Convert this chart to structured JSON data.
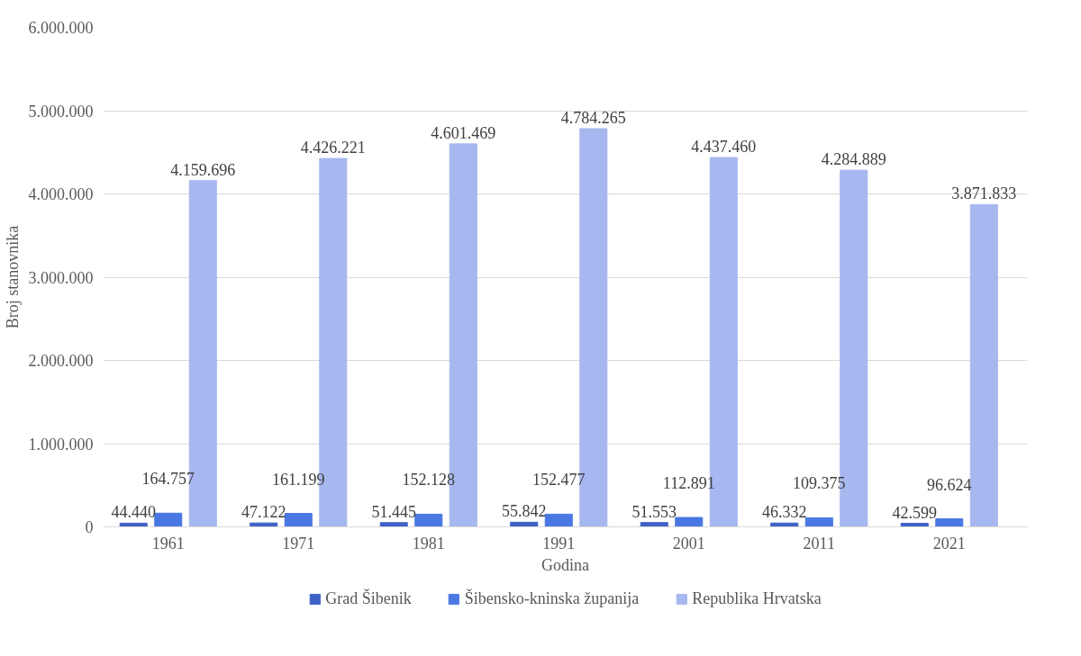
{
  "chart_data": {
    "type": "bar",
    "xlabel": "Godina",
    "ylabel": "Broj stanovnika",
    "categories": [
      "1961",
      "1971",
      "1981",
      "1991",
      "2001",
      "2011",
      "2021"
    ],
    "series": [
      {
        "name": "Grad Šibenik",
        "color": "#3f62c6",
        "values": [
          44440,
          47122,
          51445,
          55842,
          51553,
          46332,
          42599
        ],
        "value_labels": [
          "44.440",
          "47.122",
          "51.445",
          "55.842",
          "51.553",
          "46.332",
          "42.599"
        ]
      },
      {
        "name": "Šibensko-kninska županija",
        "color": "#4a78e2",
        "values": [
          164757,
          161199,
          152128,
          152477,
          112891,
          109375,
          96624
        ],
        "value_labels": [
          "164.757",
          "161.199",
          "152.128",
          "152.477",
          "112.891",
          "109.375",
          "96.624"
        ]
      },
      {
        "name": "Republika Hrvatska",
        "color": "#a7b7ef",
        "values": [
          4159696,
          4426221,
          4601469,
          4784265,
          4437460,
          4284889,
          3871833
        ],
        "value_labels": [
          "4.159.696",
          "4.426.221",
          "4.601.469",
          "4.784.265",
          "4.437.460",
          "4.284.889",
          "3.871.833"
        ]
      }
    ],
    "ylim": [
      0,
      6000000
    ],
    "yticks": [
      {
        "value": 0,
        "label": "0"
      },
      {
        "value": 1000000,
        "label": "1.000.000"
      },
      {
        "value": 2000000,
        "label": "2.000.000"
      },
      {
        "value": 3000000,
        "label": "3.000.000"
      },
      {
        "value": 4000000,
        "label": "4.000.000"
      },
      {
        "value": 5000000,
        "label": "5.000.000"
      },
      {
        "value": 6000000,
        "label": "6.000.000"
      }
    ],
    "grid": "y",
    "legend": "bottom"
  }
}
